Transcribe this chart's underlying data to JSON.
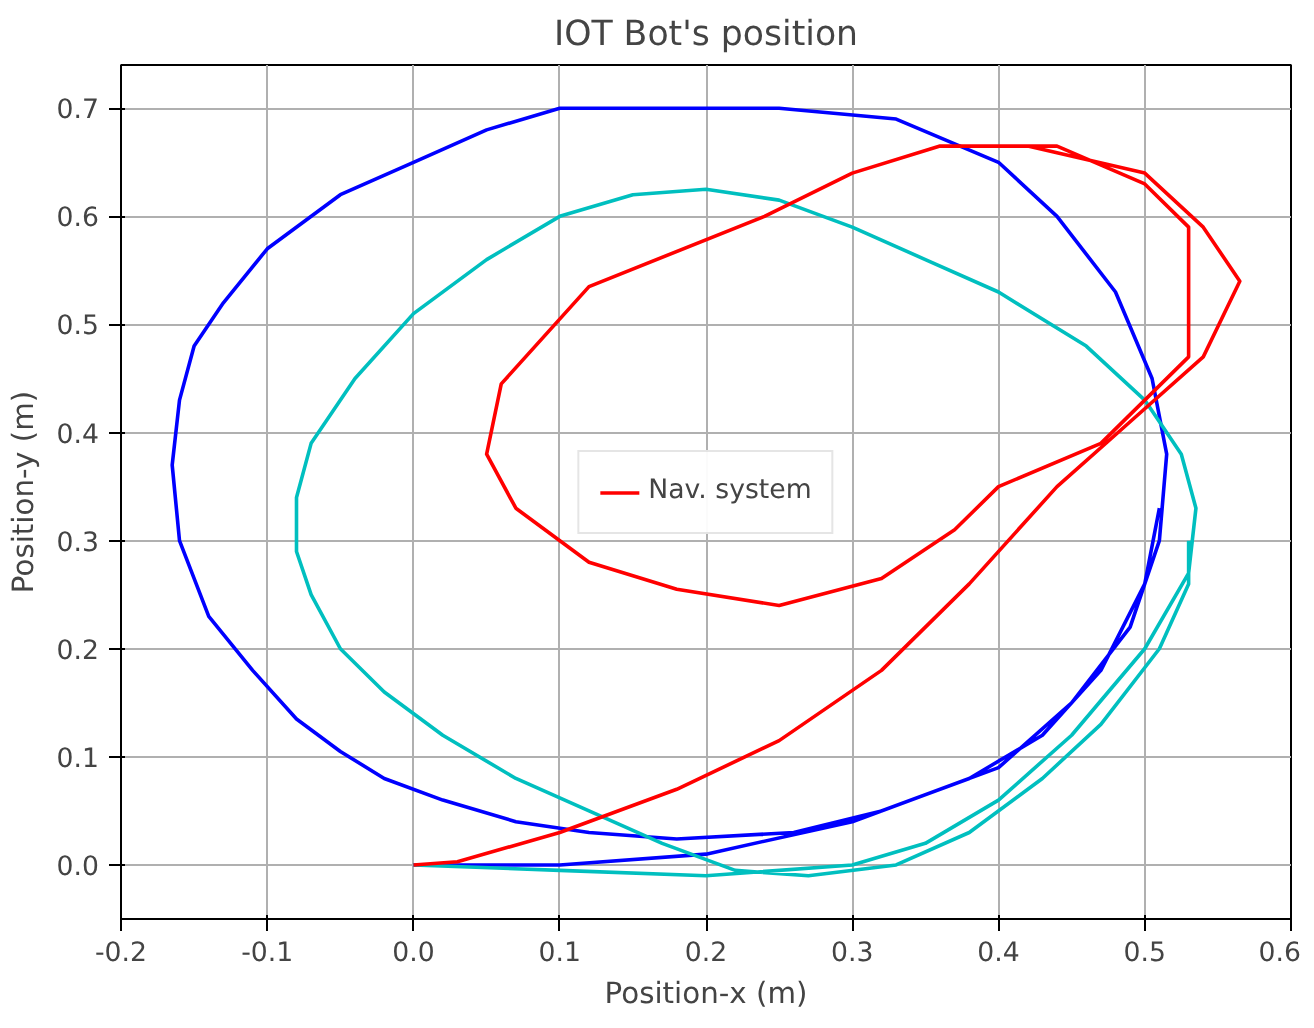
{
  "chart_data": {
    "type": "line",
    "title": "IOT Bot's position",
    "xlabel": "Position-x (m)",
    "ylabel": "Position-y (m)",
    "xlim": [
      -0.2,
      0.6
    ],
    "ylim": [
      -0.05,
      0.74
    ],
    "xticks": [
      -0.2,
      -0.1,
      {
        "value": 0,
        "label": "0.0"
      },
      0.1,
      0.2,
      0.3,
      0.4,
      0.5,
      0.6
    ],
    "yticks": [
      {
        "value": 0,
        "label": "0.0"
      },
      0.1,
      0.2,
      0.3,
      0.4,
      0.5,
      0.6,
      0.7
    ],
    "grid": true,
    "legend": "center",
    "marker": "none",
    "line_style": "solid",
    "series": [
      {
        "color": "#0000ff",
        "x": [
          0,
          0.1,
          0.2,
          0.3,
          0.4,
          0.45,
          0.49,
          0.51,
          0.515,
          0.505,
          0.48,
          0.44,
          0.4,
          0.33,
          0.25,
          0.18,
          0.1,
          0.05,
          0.0,
          -0.05,
          -0.1,
          -0.13,
          -0.15,
          -0.16,
          -0.165,
          -0.16,
          -0.14,
          -0.11,
          -0.08,
          -0.05,
          -0.02,
          0.02,
          0.07,
          0.12,
          0.18,
          0.26,
          0.32,
          0.38,
          0.43,
          0.47,
          0.5,
          0.51
        ],
        "values": [
          0,
          0.0,
          0.01,
          0.04,
          0.09,
          0.15,
          0.22,
          0.3,
          0.38,
          0.45,
          0.53,
          0.6,
          0.65,
          0.69,
          0.7,
          0.7,
          0.7,
          0.68,
          0.65,
          0.62,
          0.57,
          0.52,
          0.48,
          0.43,
          0.37,
          0.3,
          0.23,
          0.18,
          0.135,
          0.105,
          0.08,
          0.06,
          0.04,
          0.03,
          0.024,
          0.03,
          0.05,
          0.08,
          0.12,
          0.18,
          0.26,
          0.33
        ]
      },
      {
        "color": "#00bfbf",
        "x": [
          0,
          0.1,
          0.2,
          0.3,
          0.35,
          0.4,
          0.45,
          0.5,
          0.53,
          0.535,
          0.525,
          0.5,
          0.46,
          0.4,
          0.35,
          0.3,
          0.25,
          0.2,
          0.15,
          0.1,
          0.05,
          0.0,
          -0.04,
          -0.07,
          -0.08,
          -0.08,
          -0.07,
          -0.05,
          -0.02,
          0.02,
          0.07,
          0.12,
          0.17,
          0.22,
          0.27,
          0.33,
          0.38,
          0.43,
          0.47,
          0.51,
          0.53,
          0.53
        ],
        "values": [
          0,
          -0.005,
          -0.01,
          0.0,
          0.02,
          0.06,
          0.12,
          0.2,
          0.27,
          0.33,
          0.38,
          0.43,
          0.48,
          0.53,
          0.56,
          0.59,
          0.615,
          0.625,
          0.62,
          0.6,
          0.56,
          0.51,
          0.45,
          0.39,
          0.34,
          0.29,
          0.25,
          0.2,
          0.16,
          0.12,
          0.08,
          0.05,
          0.02,
          -0.005,
          -0.01,
          0.0,
          0.03,
          0.08,
          0.13,
          0.2,
          0.26,
          0.3
        ]
      },
      {
        "name": "Nav. system",
        "color": "#ff0000",
        "x": [
          0,
          0.03,
          0.1,
          0.18,
          0.25,
          0.32,
          0.38,
          0.44,
          0.49,
          0.54,
          0.565,
          0.54,
          0.5,
          0.42,
          0.36,
          0.3,
          0.24,
          0.12,
          0.06,
          0.05,
          0.07,
          0.12,
          0.18,
          0.25,
          0.32,
          0.37,
          0.4,
          0.47,
          0.53,
          0.53,
          0.53,
          0.5,
          0.44,
          0.37
        ],
        "values": [
          0,
          0.003,
          0.03,
          0.07,
          0.115,
          0.18,
          0.26,
          0.35,
          0.41,
          0.47,
          0.54,
          0.59,
          0.64,
          0.665,
          0.665,
          0.64,
          0.6,
          0.535,
          0.445,
          0.38,
          0.33,
          0.28,
          0.255,
          0.24,
          0.265,
          0.31,
          0.35,
          0.39,
          0.47,
          0.53,
          0.59,
          0.63,
          0.665,
          0.665
        ]
      }
    ]
  }
}
